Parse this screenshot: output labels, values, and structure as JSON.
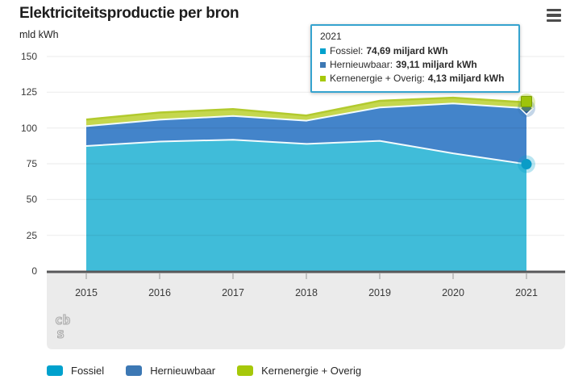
{
  "header": {
    "title": "Elektriciteitsproductie per bron",
    "unit_label": "mld kWh",
    "menu_icon": "hamburger-menu-icon"
  },
  "tooltip": {
    "title": "2021",
    "items": [
      {
        "label": "Fossiel:",
        "value": "74,69 miljard kWh",
        "color": "#00a1cd"
      },
      {
        "label": "Hernieuwbaar:",
        "value": "39,11 miljard kWh",
        "color": "#3c78b4"
      },
      {
        "label": "Kernenergie + Overig:",
        "value": "4,13 miljard kWh",
        "color": "#a6c80a"
      }
    ]
  },
  "legend": {
    "items": [
      {
        "label": "Fossiel",
        "color": "#00a1cd"
      },
      {
        "label": "Hernieuwbaar",
        "color": "#3c78b4"
      },
      {
        "label": "Kernenergie + Overig",
        "color": "#a6c80a"
      }
    ]
  },
  "footer_logo": "cbs-logo",
  "chart_data": {
    "type": "area",
    "stacked": true,
    "title": "Elektriciteitsproductie per bron",
    "ylabel": "mld kWh",
    "xlabel": "",
    "categories": [
      "2015",
      "2016",
      "2017",
      "2018",
      "2019",
      "2020",
      "2021"
    ],
    "series": [
      {
        "name": "Fossiel",
        "color": "#00a1cd",
        "fill": "#40bcd9",
        "marker": "circle",
        "values": [
          87.4,
          90.5,
          91.8,
          88.9,
          91.0,
          82.3,
          74.69
        ]
      },
      {
        "name": "Hernieuwbaar",
        "color": "#3c78b4",
        "fill": "#4384ca",
        "marker": "diamond",
        "values": [
          13.9,
          15.3,
          16.6,
          16.2,
          23.3,
          34.8,
          39.11
        ]
      },
      {
        "name": "Kernenergie + Overig",
        "color": "#a6c80a",
        "fill": "#c5d74e",
        "marker": "square",
        "values": [
          4.6,
          5.0,
          4.8,
          3.6,
          4.7,
          4.1,
          4.13
        ]
      }
    ],
    "highlighted_year": "2021",
    "ylim": [
      0,
      150
    ],
    "yticks": [
      0,
      25,
      50,
      75,
      100,
      125,
      150
    ],
    "grid": true,
    "legend_position": "bottom",
    "colors": {
      "grid_line": "rgba(0,0,0,0.08)",
      "axis_line": "#58585a",
      "axis_band": "#ebebeb",
      "boundary_line": "#f2fbfd",
      "top_line": "#b2ca2e"
    }
  }
}
